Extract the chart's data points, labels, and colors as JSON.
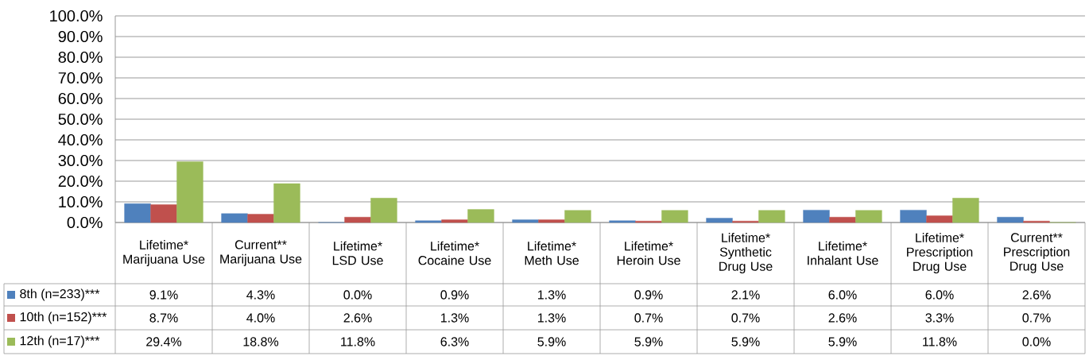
{
  "chart_data": {
    "type": "bar",
    "categories": [
      "Lifetime* Marijuana Use",
      "Current** Marijuana Use",
      "Lifetime* LSD Use",
      "Lifetime* Cocaine Use",
      "Lifetime* Meth Use",
      "Lifetime* Heroin Use",
      "Lifetime* Synthetic Drug Use",
      "Lifetime* Inhalant Use",
      "Lifetime* Prescription Drug Use",
      "Current** Prescription Drug Use"
    ],
    "series": [
      {
        "name": "8th (n=233)***",
        "color": "#4f81bd",
        "values": [
          9.1,
          4.3,
          0.0,
          0.9,
          1.3,
          0.9,
          2.1,
          6.0,
          6.0,
          2.6
        ],
        "value_labels": [
          "9.1%",
          "4.3%",
          "0.0%",
          "0.9%",
          "1.3%",
          "0.9%",
          "2.1%",
          "6.0%",
          "6.0%",
          "2.6%"
        ]
      },
      {
        "name": "10th (n=152)***",
        "color": "#c0504d",
        "values": [
          8.7,
          4.0,
          2.6,
          1.3,
          1.3,
          0.7,
          0.7,
          2.6,
          3.3,
          0.7
        ],
        "value_labels": [
          "8.7%",
          "4.0%",
          "2.6%",
          "1.3%",
          "1.3%",
          "0.7%",
          "0.7%",
          "2.6%",
          "3.3%",
          "0.7%"
        ]
      },
      {
        "name": "12th (n=17)***",
        "color": "#9bbb59",
        "values": [
          29.4,
          18.8,
          11.8,
          6.3,
          5.9,
          5.9,
          5.9,
          5.9,
          11.8,
          0.0
        ],
        "value_labels": [
          "29.4%",
          "18.8%",
          "11.8%",
          "6.3%",
          "5.9%",
          "5.9%",
          "5.9%",
          "5.9%",
          "11.8%",
          "0.0%"
        ]
      }
    ],
    "ylim": [
      0,
      100
    ],
    "yticks": [
      {
        "value": 0,
        "label": "0.0%"
      },
      {
        "value": 10,
        "label": "10.0%"
      },
      {
        "value": 20,
        "label": "20.0%"
      },
      {
        "value": 30,
        "label": "30.0%"
      },
      {
        "value": 40,
        "label": "40.0%"
      },
      {
        "value": 50,
        "label": "50.0%"
      },
      {
        "value": 60,
        "label": "60.0%"
      },
      {
        "value": 70,
        "label": "70.0%"
      },
      {
        "value": 80,
        "label": "80.0%"
      },
      {
        "value": 90,
        "label": "90.0%"
      },
      {
        "value": 100,
        "label": "100.0%"
      }
    ],
    "grid": "y",
    "legend": "bottom"
  }
}
